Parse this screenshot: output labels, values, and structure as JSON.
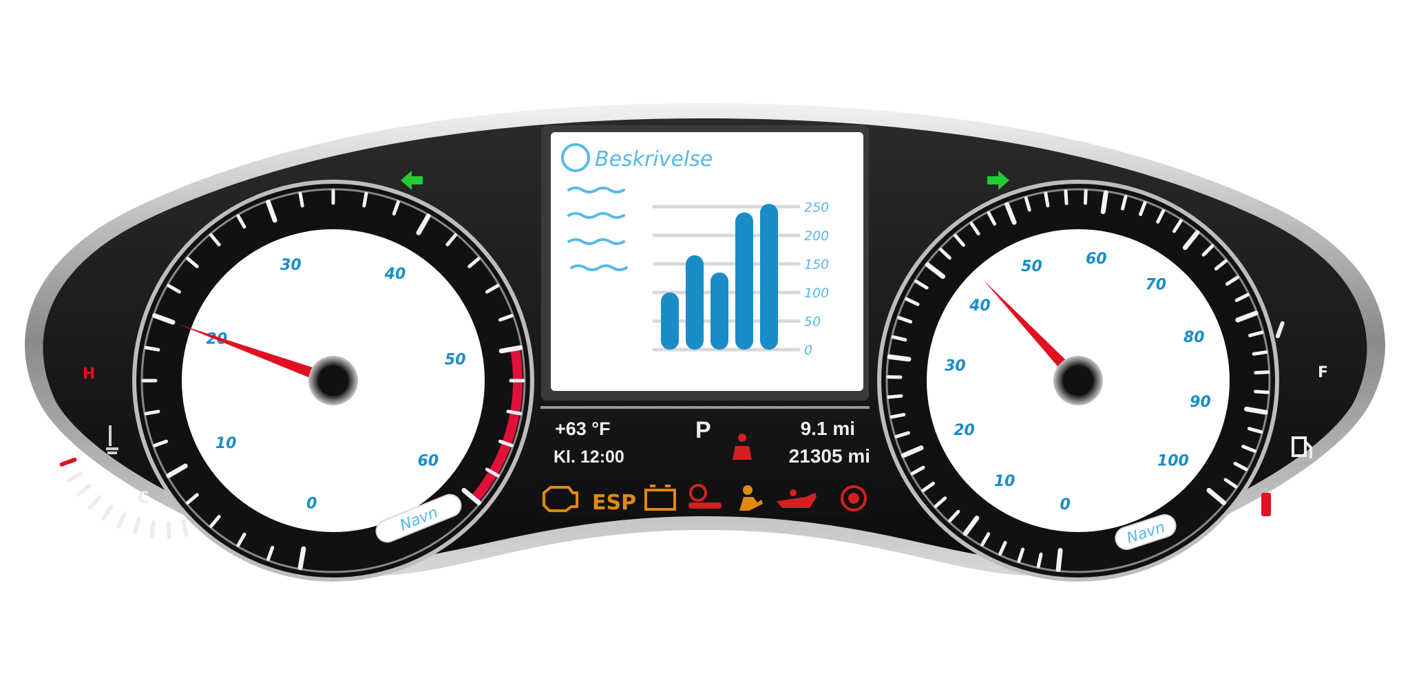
{
  "dashboard": {
    "left_gauge": {
      "tick_labels": [
        "0",
        "10",
        "20",
        "30",
        "40",
        "50",
        "60"
      ],
      "needle_value": 20,
      "badge": "Navn"
    },
    "right_gauge": {
      "tick_labels": [
        "0",
        "10",
        "20",
        "30",
        "40",
        "50",
        "60",
        "70",
        "80",
        "90",
        "100"
      ],
      "needle_value": 43,
      "badge": "Navn"
    },
    "temp_gauge": {
      "hot_label": "H",
      "cold_label": "C",
      "level": 0.5
    },
    "fuel_gauge": {
      "full_label": "F",
      "level": 0.15
    },
    "turn_signals": {
      "left": "left-arrow-icon",
      "right": "right-arrow-icon",
      "color": "#22cc33"
    },
    "center_screen": {
      "title": "Beskrivelse",
      "chart_data": {
        "type": "bar",
        "categories": [
          "",
          "",
          "",
          "",
          ""
        ],
        "values": [
          100,
          165,
          135,
          240,
          255
        ],
        "y_tick_labels": [
          "0",
          "50",
          "100",
          "150",
          "200",
          "250"
        ],
        "ylim": [
          0,
          260
        ],
        "grid": true,
        "bar_color": "#1a8cc8"
      }
    },
    "info": {
      "temperature": "+63 °F",
      "clock": "Kl. 12:00",
      "gear": "P",
      "trip": "9.1 mi",
      "odometer": "21305 mi"
    },
    "warning_lights": [
      {
        "icon": "check-engine-icon",
        "color": "#e08a10"
      },
      {
        "icon": "esp-icon",
        "label": "ESP",
        "color": "#e08a10"
      },
      {
        "icon": "battery-icon",
        "color": "#e08a10"
      },
      {
        "icon": "brake-key-icon",
        "color": "#d42020"
      },
      {
        "icon": "airbag-icon",
        "color": "#e08a10"
      },
      {
        "icon": "oil-pressure-icon",
        "color": "#d42020"
      },
      {
        "icon": "brake-warning-icon",
        "color": "#d42020"
      }
    ],
    "seatbelt_icon": {
      "icon": "seatbelt-icon",
      "color": "#d42020"
    }
  }
}
